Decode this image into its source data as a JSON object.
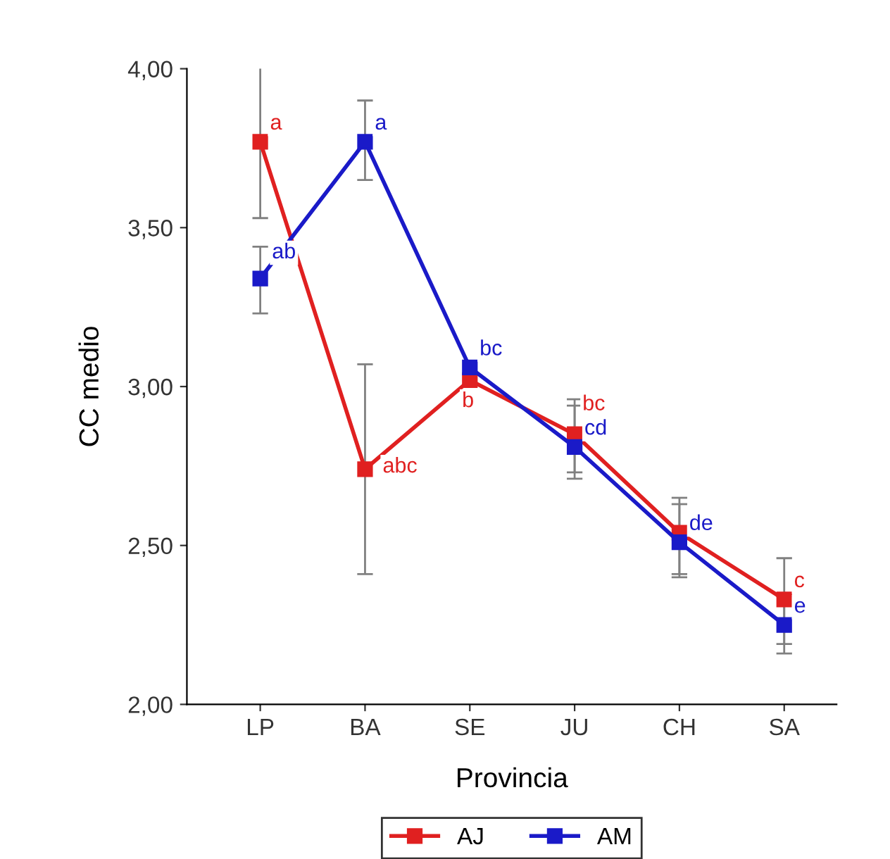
{
  "chart_data": {
    "type": "line",
    "xlabel": "Provincia",
    "ylabel": "CC medio",
    "categories": [
      "LP",
      "BA",
      "SE",
      "JU",
      "CH",
      "SA"
    ],
    "series": [
      {
        "name": "AJ",
        "color": "#e02020",
        "values": [
          3.77,
          2.74,
          3.02,
          2.85,
          2.54,
          2.33
        ],
        "errors": [
          [
            3.53,
            4.01
          ],
          [
            2.41,
            3.07
          ],
          null,
          [
            2.73,
            2.96
          ],
          [
            2.4,
            2.65
          ],
          [
            2.19,
            2.46
          ]
        ],
        "value_labels": [
          "a",
          "abc",
          "b",
          "bc",
          null,
          "c"
        ]
      },
      {
        "name": "AM",
        "color": "#1a1ac8",
        "values": [
          3.34,
          3.77,
          3.06,
          2.81,
          2.51,
          2.25
        ],
        "errors": [
          [
            3.23,
            3.44
          ],
          [
            3.65,
            3.9
          ],
          null,
          [
            2.71,
            2.94
          ],
          [
            2.41,
            2.63
          ],
          [
            2.16,
            2.34
          ]
        ],
        "value_labels": [
          "ab",
          "a",
          "bc",
          "cd",
          "de",
          "e"
        ]
      }
    ],
    "ylim": [
      2.0,
      4.0
    ],
    "yticks": [
      {
        "value": 2.0,
        "label": "2,00"
      },
      {
        "value": 2.5,
        "label": "2,50"
      },
      {
        "value": 3.0,
        "label": "3,00"
      },
      {
        "value": 3.5,
        "label": "3,50"
      },
      {
        "value": 4.0,
        "label": "4,00"
      }
    ],
    "marker": "square",
    "line_style": "solid",
    "legend": "bottom",
    "grid": false
  }
}
